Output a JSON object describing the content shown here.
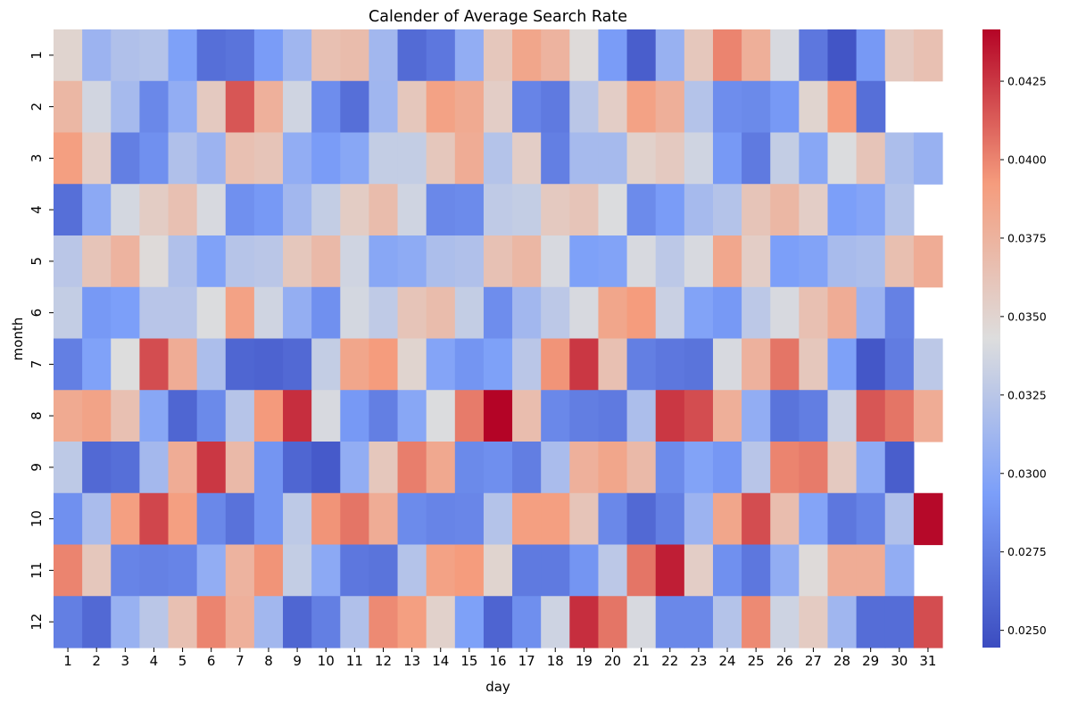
{
  "chart_data": {
    "type": "heatmap",
    "title": "Calender of Average Search Rate",
    "xlabel": "day",
    "ylabel": "month",
    "x": [
      1,
      2,
      3,
      4,
      5,
      6,
      7,
      8,
      9,
      10,
      11,
      12,
      13,
      14,
      15,
      16,
      17,
      18,
      19,
      20,
      21,
      22,
      23,
      24,
      25,
      26,
      27,
      28,
      29,
      30,
      31
    ],
    "y": [
      1,
      2,
      3,
      4,
      5,
      6,
      7,
      8,
      9,
      10,
      11,
      12
    ],
    "colormap": "coolwarm",
    "vmin": 0.02445,
    "vmax": 0.04415,
    "colorbar_ticks": [
      "0.0250",
      "0.0275",
      "0.0300",
      "0.0325",
      "0.0350",
      "0.0375",
      "0.0400",
      "0.0425"
    ],
    "colorbar_tick_values": [
      0.025,
      0.0275,
      0.03,
      0.0325,
      0.035,
      0.0375,
      0.04,
      0.0425
    ],
    "values": [
      [
        0.035,
        0.031,
        0.032,
        0.0322,
        0.0295,
        0.0265,
        0.0268,
        0.0292,
        0.0312,
        0.0365,
        0.0368,
        0.0313,
        0.0263,
        0.027,
        0.0305,
        0.036,
        0.0385,
        0.0375,
        0.0345,
        0.0292,
        0.0255,
        0.0308,
        0.036,
        0.04,
        0.0378,
        0.034,
        0.027,
        0.025,
        0.029,
        0.0358,
        0.0365
      ],
      [
        0.0372,
        0.0337,
        0.0315,
        0.028,
        0.0305,
        0.0358,
        0.0415,
        0.0377,
        0.0336,
        0.0283,
        0.0265,
        0.0312,
        0.036,
        0.0388,
        0.0382,
        0.0355,
        0.0278,
        0.0272,
        0.0325,
        0.0355,
        0.0388,
        0.0378,
        0.0322,
        0.0283,
        0.0281,
        0.029,
        0.035,
        0.0392,
        0.0265,
        null,
        null
      ],
      [
        0.039,
        0.0355,
        0.0275,
        0.0285,
        0.032,
        0.031,
        0.0365,
        0.0362,
        0.0305,
        0.0292,
        0.03,
        0.033,
        0.033,
        0.036,
        0.038,
        0.0322,
        0.0355,
        0.0275,
        0.0315,
        0.0315,
        0.0352,
        0.0358,
        0.0336,
        0.029,
        0.0272,
        0.033,
        0.03,
        0.0342,
        0.0362,
        0.0318,
        0.0308
      ],
      [
        0.0265,
        0.0302,
        0.0338,
        0.0356,
        0.0365,
        0.034,
        0.0285,
        0.029,
        0.0313,
        0.033,
        0.0356,
        0.0368,
        0.0336,
        0.028,
        0.0282,
        0.0328,
        0.033,
        0.0358,
        0.0362,
        0.0342,
        0.0282,
        0.0292,
        0.0315,
        0.0322,
        0.0362,
        0.0372,
        0.0355,
        0.0294,
        0.0298,
        0.0322,
        null
      ],
      [
        0.0325,
        0.0362,
        0.0375,
        0.0345,
        0.032,
        0.0296,
        0.0323,
        0.0325,
        0.036,
        0.037,
        0.0336,
        0.03,
        0.0303,
        0.0318,
        0.032,
        0.0364,
        0.0372,
        0.034,
        0.0295,
        0.0297,
        0.034,
        0.0326,
        0.034,
        0.0384,
        0.0355,
        0.0294,
        0.0297,
        0.0316,
        0.0318,
        0.0366,
        0.038
      ],
      [
        0.033,
        0.029,
        0.0294,
        0.0324,
        0.0324,
        0.0342,
        0.0388,
        0.0336,
        0.0306,
        0.0285,
        0.0338,
        0.0328,
        0.0362,
        0.0368,
        0.033,
        0.0283,
        0.0313,
        0.0326,
        0.034,
        0.0385,
        0.0392,
        0.0333,
        0.0297,
        0.029,
        0.0326,
        0.034,
        0.0365,
        0.038,
        0.031,
        0.0276,
        null
      ],
      [
        0.0275,
        0.0296,
        0.0343,
        0.0418,
        0.038,
        0.0318,
        0.026,
        0.0258,
        0.0262,
        0.033,
        0.0385,
        0.0392,
        0.035,
        0.0298,
        0.0288,
        0.0295,
        0.0325,
        0.0395,
        0.0425,
        0.0365,
        0.0275,
        0.027,
        0.0268,
        0.034,
        0.0376,
        0.0405,
        0.036,
        0.0295,
        0.0251,
        0.0273,
        0.0326
      ],
      [
        0.0382,
        0.0387,
        0.0365,
        0.03,
        0.026,
        0.0281,
        0.0323,
        0.0393,
        0.0428,
        0.034,
        0.029,
        0.0275,
        0.03,
        0.0342,
        0.0403,
        0.0443,
        0.0367,
        0.028,
        0.0274,
        0.0272,
        0.0318,
        0.0425,
        0.0418,
        0.0378,
        0.0305,
        0.0268,
        0.0274,
        0.0333,
        0.0415,
        0.0405,
        0.038
      ],
      [
        0.0327,
        0.0262,
        0.0265,
        0.0314,
        0.038,
        0.0425,
        0.037,
        0.0288,
        0.026,
        0.0253,
        0.0305,
        0.036,
        0.0402,
        0.0383,
        0.0281,
        0.0284,
        0.0274,
        0.0317,
        0.0377,
        0.0385,
        0.037,
        0.0282,
        0.0297,
        0.0289,
        0.0324,
        0.04,
        0.0403,
        0.0358,
        0.0303,
        0.0255,
        null
      ],
      [
        0.0285,
        0.0317,
        0.039,
        0.042,
        0.039,
        0.028,
        0.0267,
        0.0288,
        0.0327,
        0.0395,
        0.0405,
        0.038,
        0.0282,
        0.0278,
        0.0279,
        0.0322,
        0.039,
        0.039,
        0.0362,
        0.028,
        0.0262,
        0.0275,
        0.031,
        0.0385,
        0.0418,
        0.0367,
        0.0298,
        0.027,
        0.0277,
        0.032,
        0.044
      ],
      [
        0.04,
        0.036,
        0.0278,
        0.0276,
        0.0278,
        0.0305,
        0.0375,
        0.0395,
        0.033,
        0.0302,
        0.027,
        0.0268,
        0.0322,
        0.0388,
        0.0392,
        0.035,
        0.0272,
        0.0272,
        0.0288,
        0.0326,
        0.0405,
        0.0433,
        0.0355,
        0.0285,
        0.027,
        0.0305,
        0.0345,
        0.038,
        0.038,
        0.0305,
        null
      ],
      [
        0.0275,
        0.0262,
        0.0308,
        0.0325,
        0.0365,
        0.04,
        0.0377,
        0.0313,
        0.026,
        0.0275,
        0.032,
        0.0398,
        0.039,
        0.0352,
        0.0295,
        0.0259,
        0.0284,
        0.0335,
        0.0428,
        0.0405,
        0.034,
        0.028,
        0.028,
        0.0322,
        0.0398,
        0.0335,
        0.0357,
        0.0312,
        0.0264,
        0.0264,
        0.0418
      ]
    ]
  }
}
